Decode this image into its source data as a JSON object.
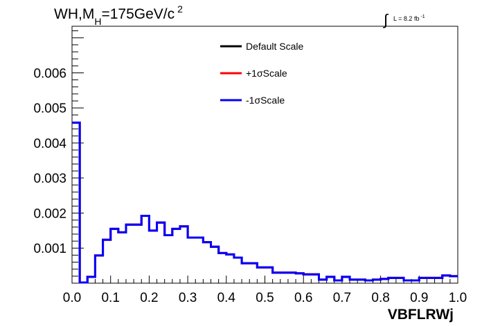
{
  "chart_data": {
    "type": "line",
    "title": {
      "prefix": "WH,M",
      "subscript": "H",
      "middle": "=175GeV/c",
      "superscript": "2"
    },
    "luminosity": {
      "integral_symbol": "∫",
      "label": "L = 8.2 fb",
      "superscript": "-1"
    },
    "xlabel": "VBFLRWj",
    "ylabel": "",
    "xlim": [
      0.0,
      1.0
    ],
    "ylim": [
      0.0,
      0.00733
    ],
    "x_ticks": [
      "0.0",
      "0.1",
      "0.2",
      "0.3",
      "0.4",
      "0.5",
      "0.6",
      "0.7",
      "0.8",
      "0.9",
      "1.0"
    ],
    "y_ticks": [
      "0.001",
      "0.002",
      "0.003",
      "0.004",
      "0.005",
      "0.006"
    ],
    "y_tick_values": [
      0.001,
      0.002,
      0.003,
      0.004,
      0.005,
      0.006
    ],
    "grid": false,
    "legend_position": "top-center",
    "bins": {
      "x_low": 0.0,
      "x_high": 1.0,
      "count": 50
    },
    "series": [
      {
        "name": "Default Scale",
        "color": "#000000",
        "values": [
          0.00458,
          2e-05,
          0.00018,
          0.00079,
          0.00124,
          0.00155,
          0.00145,
          0.00167,
          0.00167,
          0.00192,
          0.0015,
          0.00173,
          0.00137,
          0.00155,
          0.00162,
          0.0013,
          0.0013,
          0.00117,
          0.00104,
          0.00086,
          0.00082,
          0.00073,
          0.00057,
          0.00057,
          0.00045,
          0.00045,
          0.0003,
          0.0003,
          0.0003,
          0.00028,
          0.00025,
          0.00025,
          0.0001,
          0.00018,
          8e-05,
          0.00018,
          0.0001,
          0.0001,
          8e-05,
          0.0001,
          0.00012,
          0.00015,
          0.00015,
          8e-05,
          8e-05,
          0.00015,
          0.00015,
          0.00015,
          0.00022,
          0.0002
        ]
      },
      {
        "name": "+1σScale",
        "color": "#ff0000",
        "values": [
          0.00458,
          2e-05,
          0.00018,
          0.00079,
          0.00124,
          0.00155,
          0.00145,
          0.00167,
          0.00167,
          0.00192,
          0.0015,
          0.00173,
          0.00137,
          0.00155,
          0.00162,
          0.0013,
          0.0013,
          0.00117,
          0.00104,
          0.00086,
          0.00082,
          0.00073,
          0.00057,
          0.00057,
          0.00045,
          0.00045,
          0.0003,
          0.0003,
          0.0003,
          0.00028,
          0.00025,
          0.00025,
          0.0001,
          0.00018,
          8e-05,
          0.00018,
          0.0001,
          0.0001,
          8e-05,
          0.0001,
          0.00012,
          0.00015,
          0.00015,
          8e-05,
          8e-05,
          0.00015,
          0.00015,
          0.00015,
          0.00022,
          0.0002
        ]
      },
      {
        "name": "-1σScale",
        "color": "#0000ff",
        "values": [
          0.00458,
          2e-05,
          0.00018,
          0.00079,
          0.00124,
          0.00155,
          0.00145,
          0.00167,
          0.00167,
          0.00192,
          0.0015,
          0.00173,
          0.00137,
          0.00155,
          0.00162,
          0.0013,
          0.0013,
          0.00117,
          0.00104,
          0.00086,
          0.00082,
          0.00073,
          0.00057,
          0.00057,
          0.00045,
          0.00045,
          0.0003,
          0.0003,
          0.0003,
          0.00028,
          0.00025,
          0.00025,
          0.0001,
          0.00018,
          8e-05,
          0.00018,
          0.0001,
          0.0001,
          8e-05,
          0.0001,
          0.00012,
          0.00015,
          0.00015,
          8e-05,
          8e-05,
          0.00015,
          0.00015,
          0.00015,
          0.00022,
          0.0002
        ]
      }
    ]
  }
}
